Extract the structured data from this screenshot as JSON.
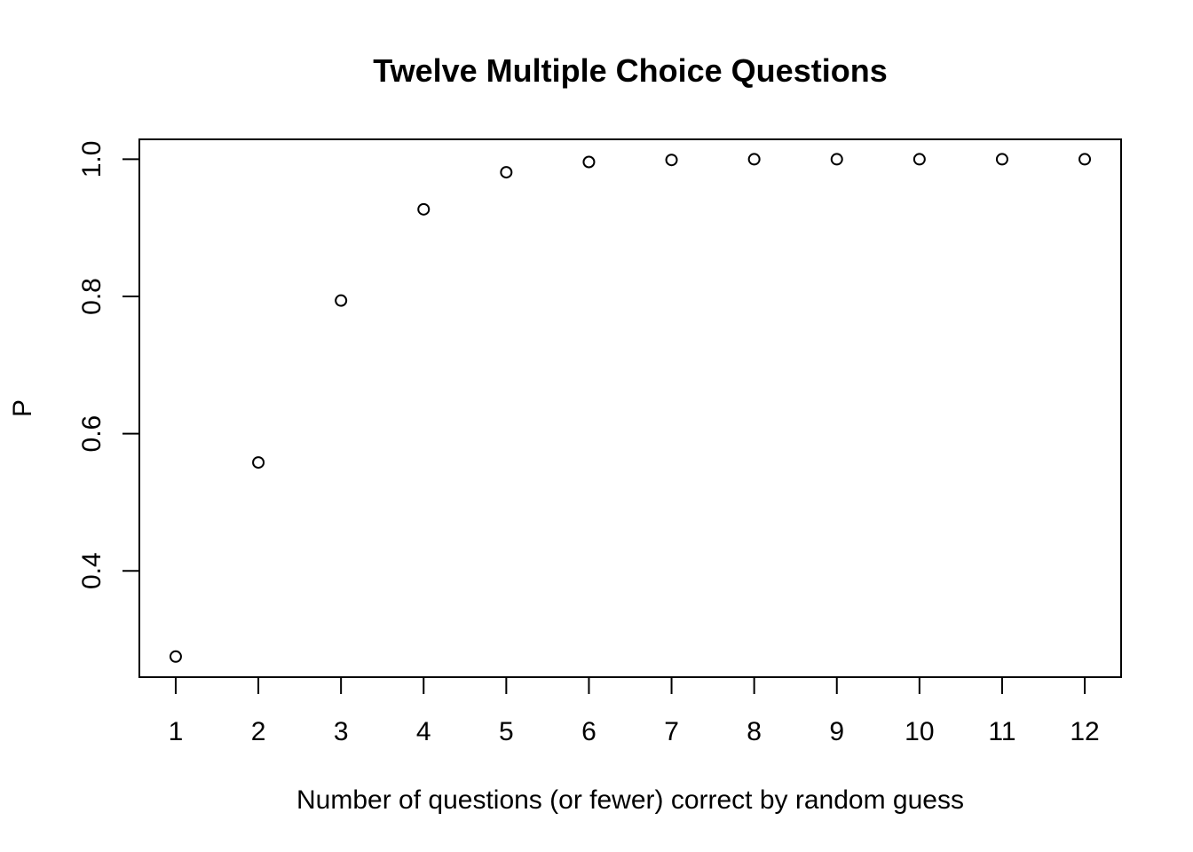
{
  "chart_data": {
    "type": "scatter",
    "title": "Twelve Multiple Choice Questions",
    "xlabel": "Number of questions (or fewer) correct by random guess",
    "ylabel": "P",
    "x": [
      1,
      2,
      3,
      4,
      5,
      6,
      7,
      8,
      9,
      10,
      11,
      12
    ],
    "y": [
      0.275,
      0.558,
      0.794,
      0.927,
      0.981,
      0.996,
      0.999,
      1.0,
      1.0,
      1.0,
      1.0,
      1.0
    ],
    "xlim": [
      0.56,
      12.44
    ],
    "ylim": [
      0.245,
      1.029
    ],
    "x_ticks": [
      "1",
      "2",
      "3",
      "4",
      "5",
      "6",
      "7",
      "8",
      "9",
      "10",
      "11",
      "12"
    ],
    "y_ticks": [
      "0.4",
      "0.6",
      "0.8",
      "1.0"
    ],
    "grid": false,
    "marker": "open-circle",
    "colors": {
      "point": "#000000",
      "background": "#ffffff"
    }
  }
}
